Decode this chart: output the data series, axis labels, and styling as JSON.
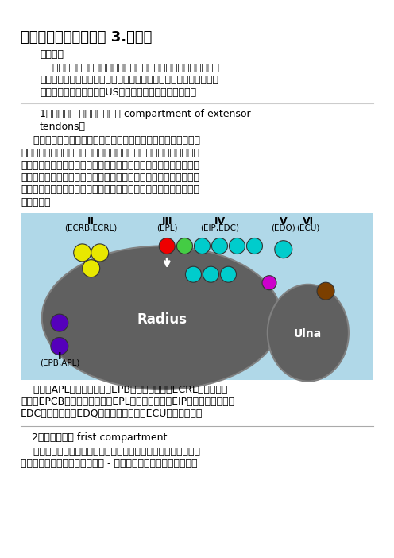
{
  "title": "肌内骨骼超声技术指南 3.腕关节",
  "bg_color": "#ffffff",
  "diagram_bg": "#b0d8e8",
  "text_color": "#000000",
  "expand": "展开全文",
  "para1_lines": [
    "    对手腕标准的超声检查从评估其背侧开始，然后是手掌评估。根",
    "据具体的临床表现，可以在手腕的不同位置（屈曲和伸展，桡骨和尺",
    "骨偏，内旋和旋后）获得US图像，患者坐在检查者面前。"
  ],
  "section1a": "1、手腕背侧 （伸肌腱的隔间 compartment of extensor",
  "section1b": "tendons）",
  "para2_lines": [
    "    将超声探头放在手腕背侧的横向平面上，以便正确识别伸肌腱。",
    "一般情况下，应该首先识别固有的肌腱，然后按照它在短轴的平面向",
    "下到远端插入处。超声的伸肌腱长轴图像不太有用，但是它们可能有",
    "助于评估肌腱的完整性，并详细评估其动态运动。伸肌腱的动态扫描",
    "可以通过将手放在凝胶管上，手指悬挂在其边缘之外来进行，以便于",
    "手指移动。"
  ],
  "caption_lines": [
    "    注解：APL，外展拇长肌；EPB，伸拇指短肌；ECRL，桡侧伸腕",
    "长肌；EPCB，桡侧伸腕短肌；EPL，伸拇指长肌；EIP，食指固有伸肌；",
    "EDC，伸指长肌；EDQ，小指固有伸肌；ECU，尺侧伸腕肌"
  ],
  "section2": "2、第一间隔室 frist compartment",
  "para3_lines": [
    "    将患者的手腕保持在旋前和旋后的中间位置，将探头放在桡骨茎",
    "突的侧面以检查伸肌腱的第一室 - 将长外展肌（腹侧）和拇短伸肌"
  ]
}
